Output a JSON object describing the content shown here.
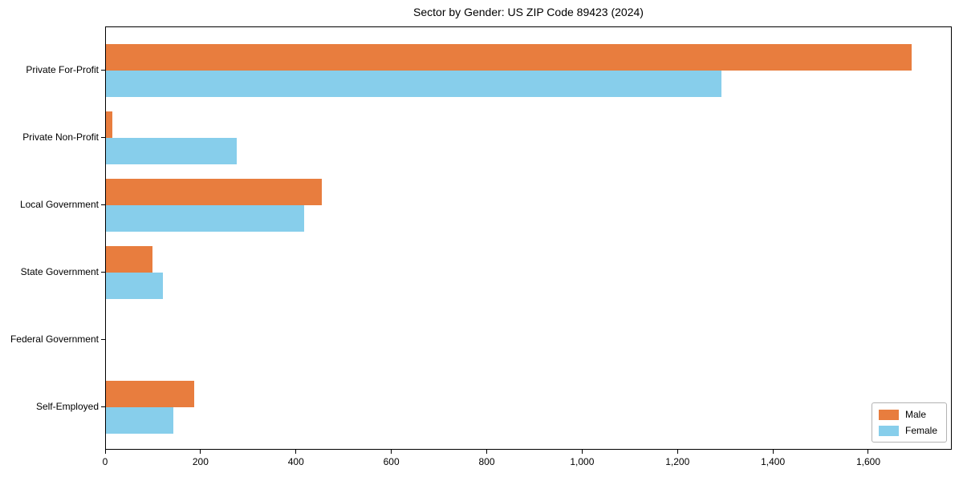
{
  "chart_data": {
    "type": "bar",
    "orientation": "horizontal",
    "title": "Sector by Gender: US ZIP Code 89423 (2024)",
    "categories": [
      "Private For-Profit",
      "Private Non-Profit",
      "Local Government",
      "State Government",
      "Federal Government",
      "Self-Employed"
    ],
    "series": [
      {
        "name": "Male",
        "color": "#E87D3E",
        "values": [
          1690,
          13,
          453,
          98,
          0,
          185
        ]
      },
      {
        "name": "Female",
        "color": "#87CEEB",
        "values": [
          1290,
          274,
          416,
          119,
          0,
          141
        ]
      }
    ],
    "xlim": [
      0,
      1775
    ],
    "xticks": [
      0,
      200,
      400,
      600,
      800,
      1000,
      1200,
      1400,
      1600
    ],
    "xtick_labels": [
      "0",
      "200",
      "400",
      "600",
      "800",
      "1,000",
      "1,200",
      "1,400",
      "1,600"
    ],
    "xlabel": "",
    "ylabel": "",
    "grid": false,
    "legend_position": "lower right"
  },
  "colors": {
    "male": "#E87D3E",
    "female": "#87CEEB",
    "axis": "#000000",
    "legend_border": "#b3b3b3",
    "background": "#ffffff"
  }
}
